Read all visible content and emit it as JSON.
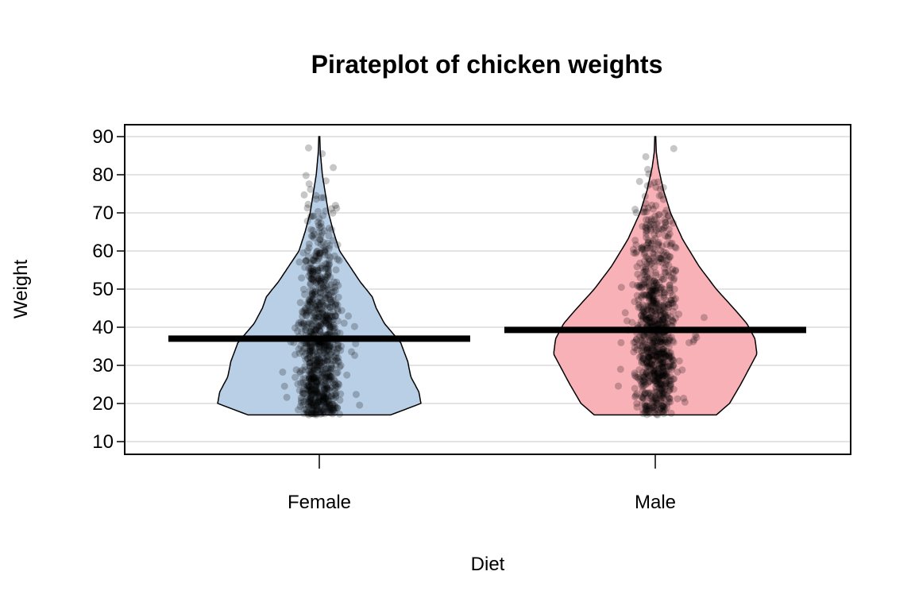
{
  "chart_data": {
    "type": "pirateplot",
    "title": "Pirateplot of chicken weights",
    "xlabel": "Diet",
    "ylabel": "Weight",
    "categories": [
      "Female",
      "Male"
    ],
    "ylim": [
      7,
      93
    ],
    "yticks": [
      10,
      20,
      30,
      40,
      50,
      60,
      70,
      80,
      90
    ],
    "grid": true,
    "series": [
      {
        "category": "Female",
        "mean": 37,
        "color": "#b9cfe6",
        "min": 17,
        "max": 90,
        "density": [
          [
            17,
            0.7
          ],
          [
            20,
            1.0
          ],
          [
            23,
            0.98
          ],
          [
            27,
            0.9
          ],
          [
            31,
            0.87
          ],
          [
            36,
            0.8
          ],
          [
            41,
            0.64
          ],
          [
            45,
            0.56
          ],
          [
            48,
            0.52
          ],
          [
            52,
            0.4
          ],
          [
            56,
            0.3
          ],
          [
            60,
            0.2
          ],
          [
            65,
            0.14
          ],
          [
            70,
            0.09
          ],
          [
            75,
            0.06
          ],
          [
            80,
            0.03
          ],
          [
            86,
            0.01
          ],
          [
            90,
            0.005
          ]
        ]
      },
      {
        "category": "Male",
        "mean": 39.3,
        "color": "#f9b1b8",
        "min": 17,
        "max": 90,
        "density": [
          [
            17,
            0.6
          ],
          [
            20,
            0.73
          ],
          [
            25,
            0.84
          ],
          [
            30,
            0.94
          ],
          [
            33,
            1.0
          ],
          [
            37,
            0.98
          ],
          [
            41,
            0.9
          ],
          [
            45,
            0.77
          ],
          [
            50,
            0.6
          ],
          [
            56,
            0.43
          ],
          [
            63,
            0.27
          ],
          [
            70,
            0.15
          ],
          [
            76,
            0.08
          ],
          [
            82,
            0.03
          ],
          [
            86,
            0.01
          ],
          [
            90,
            0.005
          ]
        ]
      }
    ]
  }
}
